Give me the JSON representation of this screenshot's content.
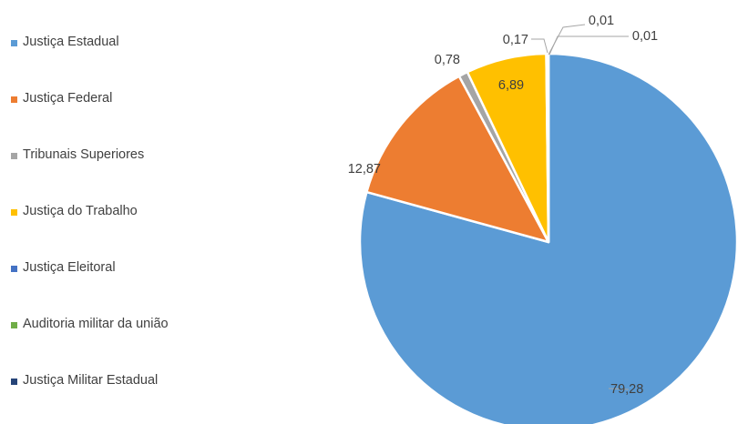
{
  "chart_data": {
    "type": "pie",
    "title": "",
    "legend_position": "left",
    "slices": [
      {
        "label": "Justiça Estadual",
        "value": 79.28,
        "value_label": "79,28",
        "color": "#5B9BD5"
      },
      {
        "label": "Justiça Federal",
        "value": 12.87,
        "value_label": "12,87",
        "color": "#ED7D31"
      },
      {
        "label": "Tribunais Superiores",
        "value": 0.78,
        "value_label": "0,78",
        "color": "#A5A5A5"
      },
      {
        "label": "Justiça do Trabalho",
        "value": 6.89,
        "value_label": "6,89",
        "color": "#FFC000"
      },
      {
        "label": "Justiça Eleitoral",
        "value": 0.17,
        "value_label": "0,17",
        "color": "#4472C4"
      },
      {
        "label": "Auditoria militar da união",
        "value": 0.01,
        "value_label": "0,01",
        "color": "#70AD47"
      },
      {
        "label": "Justiça Militar Estadual",
        "value": 0.01,
        "value_label": "0,01",
        "color": "#264478"
      }
    ]
  }
}
